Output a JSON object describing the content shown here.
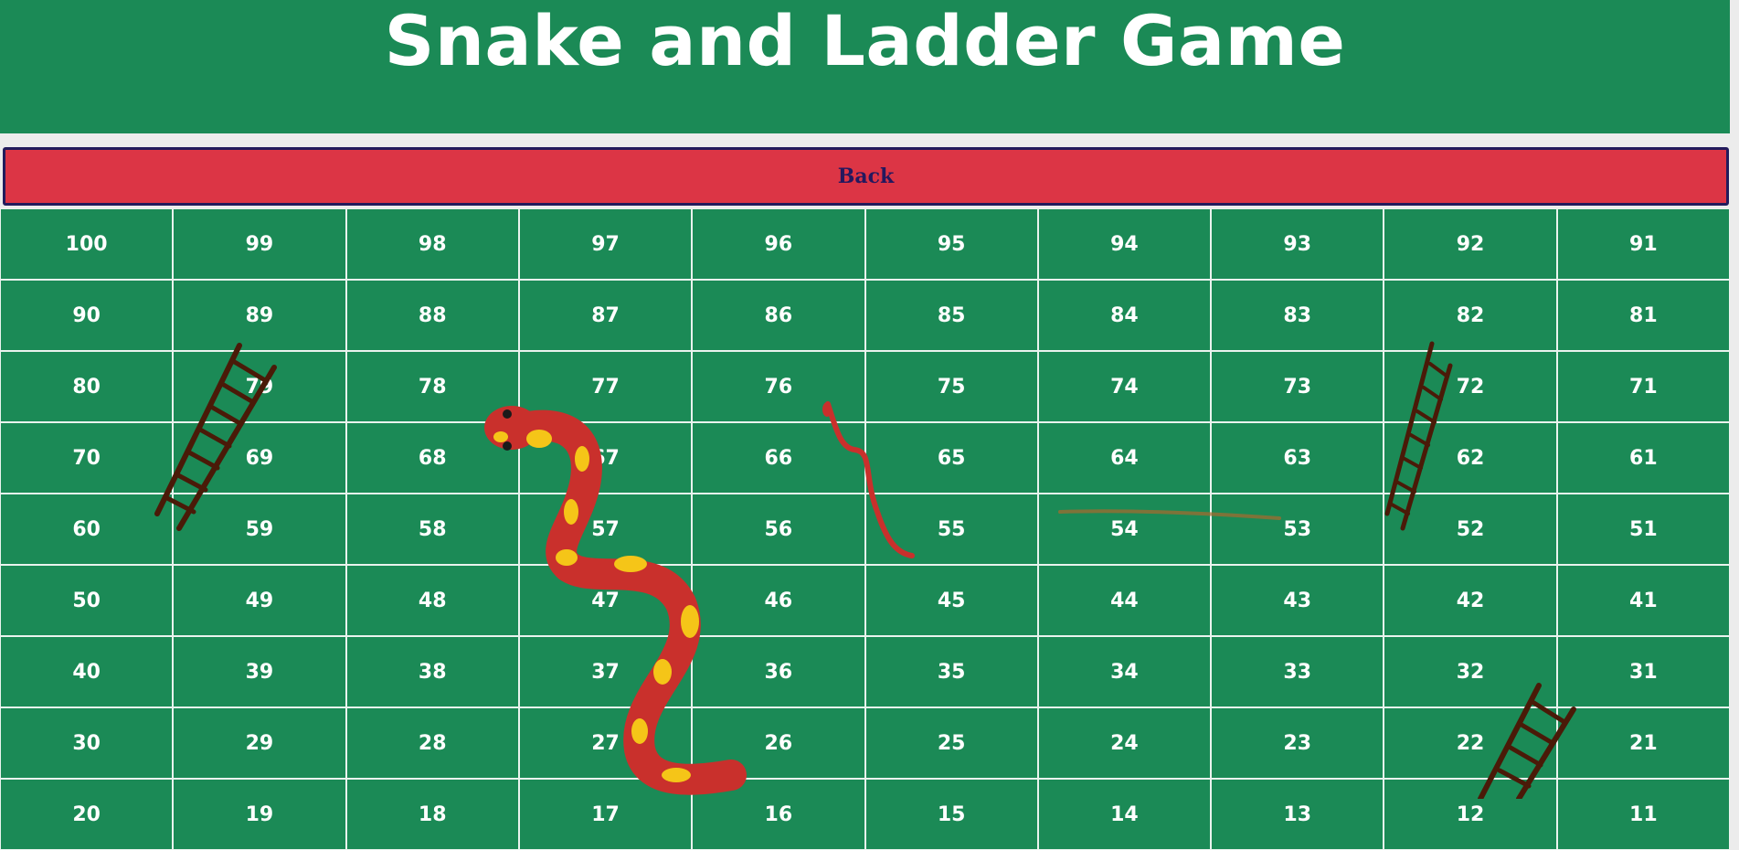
{
  "header": {
    "title": "Snake and Ladder Game"
  },
  "controls": {
    "back_label": "Back"
  },
  "board": {
    "cells": [
      100,
      99,
      98,
      97,
      96,
      95,
      94,
      93,
      92,
      91,
      90,
      89,
      88,
      87,
      86,
      85,
      84,
      83,
      82,
      81,
      80,
      79,
      78,
      77,
      76,
      75,
      74,
      73,
      72,
      71,
      70,
      69,
      68,
      67,
      66,
      65,
      64,
      63,
      62,
      61,
      60,
      59,
      58,
      57,
      56,
      55,
      54,
      53,
      52,
      51,
      50,
      49,
      48,
      47,
      46,
      45,
      44,
      43,
      42,
      41,
      40,
      39,
      38,
      37,
      36,
      35,
      34,
      33,
      32,
      31,
      30,
      29,
      28,
      27,
      26,
      25,
      24,
      23,
      22,
      21,
      20,
      19,
      18,
      17,
      16,
      15,
      14,
      13,
      12,
      11
    ]
  },
  "colors": {
    "header_bg": "#1b8a56",
    "cell_bg": "#1b8a56",
    "back_button_bg": "#dc3545",
    "back_button_text": "#25185e",
    "snake_body": "#c9302c",
    "snake_spots": "#f5c518",
    "ladder": "#5a2510"
  },
  "pieces": {
    "ladders": [
      "ladder-icon",
      "ladder-icon",
      "ladder-icon"
    ],
    "snakes": [
      "snake-icon",
      "snake-icon",
      "snake-icon"
    ]
  }
}
